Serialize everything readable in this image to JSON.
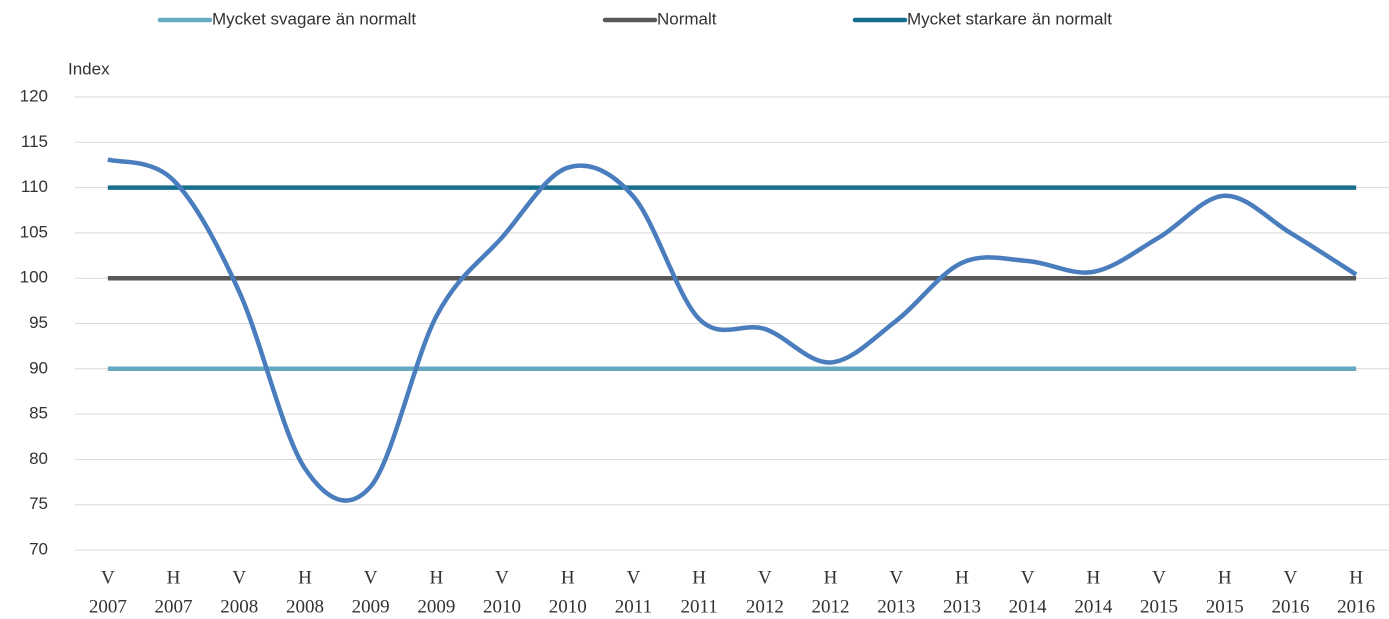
{
  "chart_data": {
    "type": "line",
    "y_label": "Index",
    "categories": [
      [
        "V",
        "2007"
      ],
      [
        "H",
        "2007"
      ],
      [
        "V",
        "2008"
      ],
      [
        "H",
        "2008"
      ],
      [
        "V",
        "2009"
      ],
      [
        "H",
        "2009"
      ],
      [
        "V",
        "2010"
      ],
      [
        "H",
        "2010"
      ],
      [
        "V",
        "2011"
      ],
      [
        "H",
        "2011"
      ],
      [
        "V",
        "2012"
      ],
      [
        "H",
        "2012"
      ],
      [
        "V",
        "2013"
      ],
      [
        "H",
        "2013"
      ],
      [
        "V",
        "2014"
      ],
      [
        "H",
        "2014"
      ],
      [
        "V",
        "2015"
      ],
      [
        "H",
        "2015"
      ],
      [
        "V",
        "2016"
      ],
      [
        "H",
        "2016"
      ]
    ],
    "series": [
      {
        "name": "Mycket svagare än normalt",
        "color": "#65aac2",
        "values": [
          90,
          90,
          90,
          90,
          90,
          90,
          90,
          90,
          90,
          90,
          90,
          90,
          90,
          90,
          90,
          90,
          90,
          90,
          90,
          90
        ]
      },
      {
        "name": "Normalt",
        "color": "#595959",
        "values": [
          100,
          100,
          100,
          100,
          100,
          100,
          100,
          100,
          100,
          100,
          100,
          100,
          100,
          100,
          100,
          100,
          100,
          100,
          100,
          100
        ]
      },
      {
        "name": "Mycket starkare än normalt",
        "color": "#176f8e",
        "values": [
          110,
          110,
          110,
          110,
          110,
          110,
          110,
          110,
          110,
          110,
          110,
          110,
          110,
          110,
          110,
          110,
          110,
          110,
          110,
          110
        ]
      },
      {
        "color": "#4a7dbd",
        "smooth": true,
        "values": [
          113.1,
          110.8,
          98.5,
          79,
          77,
          95.8,
          104.5,
          112.2,
          109,
          95.5,
          94.4,
          90.7,
          95.3,
          101.7,
          101.9,
          100.7,
          104.5,
          109.1,
          105,
          100.4
        ]
      }
    ],
    "ylim": [
      70,
      120
    ],
    "yticks": [
      70,
      75,
      80,
      85,
      90,
      95,
      100,
      105,
      110,
      115,
      120
    ],
    "grid": true,
    "legend": "top"
  }
}
